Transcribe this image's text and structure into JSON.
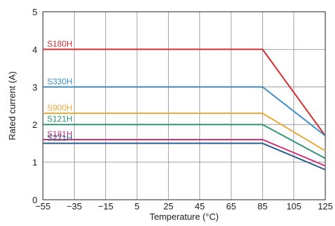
{
  "chart_data": {
    "type": "line",
    "xlabel": "Temperature (°C)",
    "ylabel": "Rated current (A)",
    "xlim": [
      -55,
      125
    ],
    "ylim": [
      0,
      5
    ],
    "x_ticks": [
      "−55",
      "−35",
      "−15",
      "5",
      "25",
      "45",
      "65",
      "85",
      "105",
      "125"
    ],
    "y_ticks": [
      "0",
      "1",
      "2",
      "3",
      "4",
      "5"
    ],
    "grid": true,
    "series": [
      {
        "name": "S180H",
        "color": "#d32f2f",
        "x": [
          -55,
          85,
          125
        ],
        "y": [
          4.0,
          4.0,
          1.7
        ]
      },
      {
        "name": "S330H",
        "color": "#3b8dc4",
        "x": [
          -55,
          85,
          125
        ],
        "y": [
          3.0,
          3.0,
          1.7
        ]
      },
      {
        "name": "S900H",
        "color": "#e8a83a",
        "x": [
          -55,
          85,
          125
        ],
        "y": [
          2.3,
          2.3,
          1.3
        ]
      },
      {
        "name": "S121H",
        "color": "#2e9577",
        "x": [
          -55,
          85,
          125
        ],
        "y": [
          2.0,
          2.0,
          1.1
        ]
      },
      {
        "name": "S181H",
        "color": "#d0307a",
        "x": [
          -55,
          85,
          125
        ],
        "y": [
          1.6,
          1.6,
          0.9
        ]
      },
      {
        "name": "S221H",
        "color": "#2b5b8f",
        "x": [
          -55,
          85,
          125
        ],
        "y": [
          1.5,
          1.5,
          0.8
        ]
      }
    ]
  }
}
